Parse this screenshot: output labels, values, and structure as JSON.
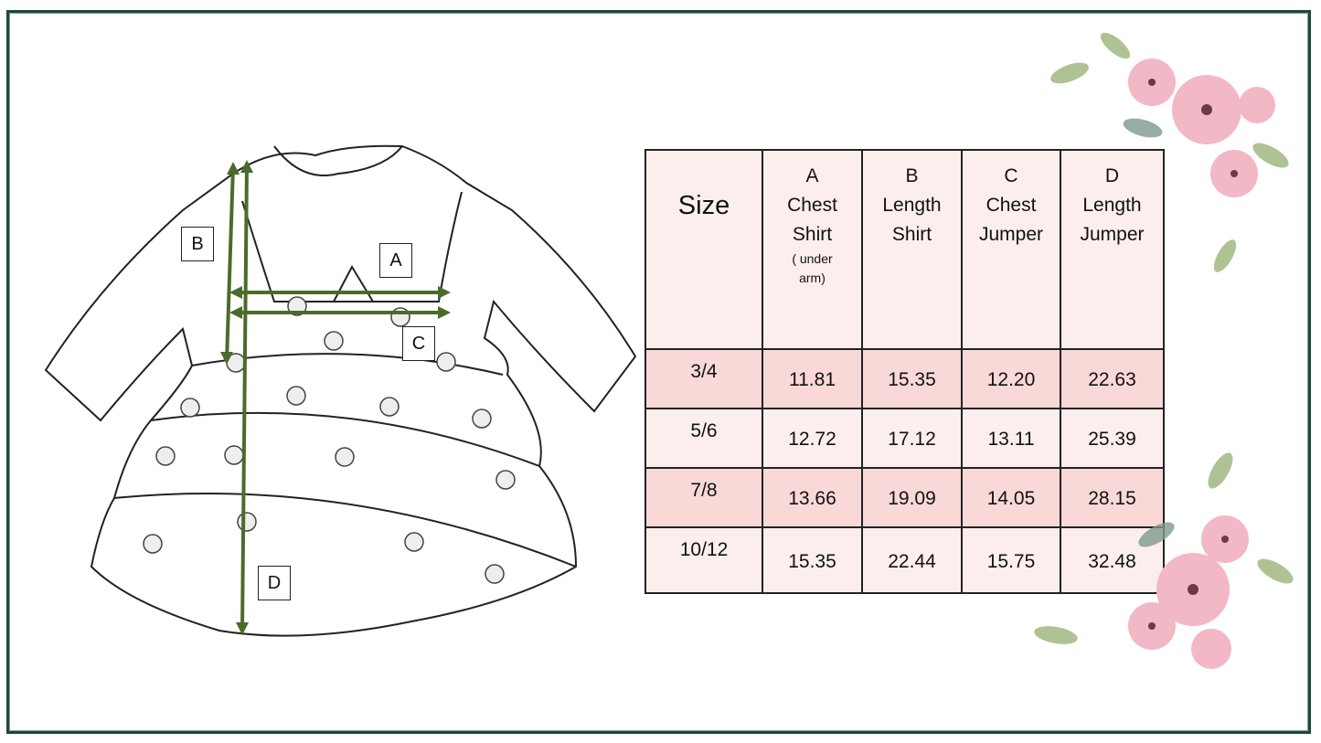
{
  "labels": {
    "a": "A",
    "b": "B",
    "c": "C",
    "d": "D"
  },
  "table": {
    "headers": [
      {
        "title": "Size"
      },
      {
        "letter": "A",
        "line1": "Chest",
        "line2": "Shirt",
        "note": "( under arm)"
      },
      {
        "letter": "B",
        "line1": "Length",
        "line2": "Shirt"
      },
      {
        "letter": "C",
        "line1": "Chest",
        "line2": "Jumper"
      },
      {
        "letter": "D",
        "line1": "Length",
        "line2": "Jumper"
      }
    ],
    "rows": [
      [
        "3/4",
        "11.81",
        "15.35",
        "12.20",
        "22.63"
      ],
      [
        "5/6",
        "12.72",
        "17.12",
        "13.11",
        "25.39"
      ],
      [
        "7/8",
        "13.66",
        "19.09",
        "14.05",
        "28.15"
      ],
      [
        "10/12",
        "15.35",
        "22.44",
        "15.75",
        "32.48"
      ]
    ]
  },
  "colors": {
    "frame": "#1d4a38",
    "arrow": "#4b6b2a",
    "row_pink": "#f9d8d8",
    "row_light": "#fdeeee",
    "flower": "#f2b8c6"
  }
}
